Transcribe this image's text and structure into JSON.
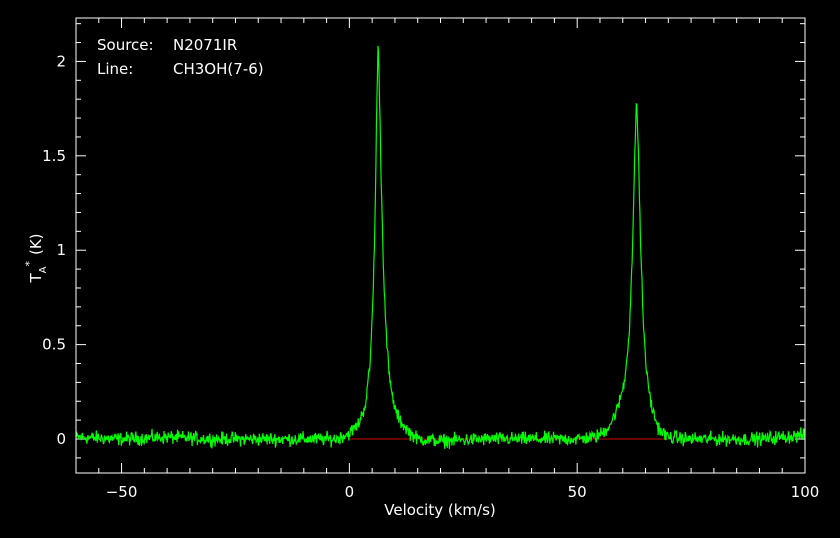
{
  "info": {
    "source_label": "Source:",
    "source_value": "N2071IR",
    "line_label": "Line:",
    "line_value": "CH3OH(7-6)"
  },
  "chart_data": {
    "type": "line",
    "title": "",
    "xlabel": "Velocity (km/s)",
    "ylabel": "T*A (K)",
    "ylabel_parts": {
      "main": "T",
      "sub": "A",
      "sup": "*",
      "unit": "(K)"
    },
    "xlim": [
      -60,
      100
    ],
    "ylim": [
      -0.18,
      2.23
    ],
    "xticks": [
      -50,
      0,
      50,
      100
    ],
    "xtick_labels": [
      "−50",
      "0",
      "50",
      "100"
    ],
    "yticks": [
      0,
      0.5,
      1,
      1.5,
      2
    ],
    "ytick_labels": [
      "0",
      "0.5",
      "1",
      "1.5",
      "2"
    ],
    "grid": false,
    "colors": {
      "spectrum": "#00ff00",
      "baseline": "#cc0000",
      "frame": "#ffffff",
      "background": "#000000"
    },
    "baseline": {
      "x": [
        0,
        70
      ],
      "y": [
        0,
        0
      ]
    },
    "series": [
      {
        "x": [
          -60,
          -50,
          -40,
          -30,
          -20,
          -10,
          -3,
          0,
          2,
          3.5,
          4.5,
          5.2,
          5.7,
          6.0,
          6.3,
          6.6,
          7.0,
          7.5,
          8.2,
          9,
          10,
          11,
          13,
          15,
          20,
          30,
          40,
          50,
          54,
          56,
          57.5,
          59,
          60.5,
          61.5,
          62.2,
          62.6,
          63.0,
          63.4,
          63.9,
          64.5,
          65.3,
          66.5,
          68,
          70,
          75,
          80,
          90,
          100
        ],
        "y": [
          0.01,
          0.0,
          0.01,
          0.0,
          0.0,
          0.0,
          0.0,
          0.03,
          0.08,
          0.18,
          0.38,
          0.75,
          1.25,
          1.75,
          2.1,
          1.85,
          1.35,
          0.9,
          0.5,
          0.28,
          0.16,
          0.1,
          0.04,
          0.0,
          -0.01,
          0.0,
          0.0,
          0.0,
          0.01,
          0.04,
          0.09,
          0.17,
          0.32,
          0.6,
          1.05,
          1.45,
          1.82,
          1.55,
          1.05,
          0.62,
          0.33,
          0.15,
          0.05,
          0.01,
          0.0,
          0.0,
          0.0,
          0.02
        ]
      }
    ]
  }
}
